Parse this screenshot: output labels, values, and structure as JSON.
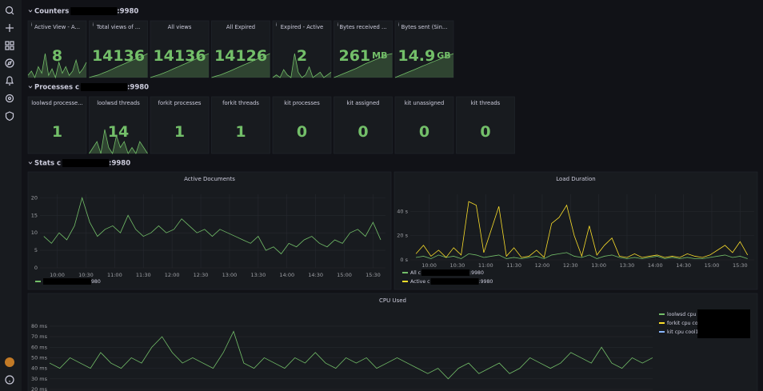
{
  "sections": [
    {
      "title": "Counters",
      "suffix": ":9980"
    },
    {
      "title": "Processes c",
      "suffix": ":9980"
    },
    {
      "title": "Stats c",
      "suffix": ":9980"
    }
  ],
  "stats": [
    {
      "title": "Active View - A...",
      "value": 8,
      "spark": [
        2,
        4,
        1,
        6,
        3,
        12,
        2,
        5,
        1,
        8,
        3,
        6,
        2,
        4,
        9,
        3,
        5,
        8
      ]
    },
    {
      "title": "Total views of ...",
      "value": 14136,
      "spark": [
        0,
        800,
        1500,
        2600,
        3600,
        4800,
        6000,
        7200,
        8300,
        9500,
        10600,
        11700,
        12800,
        14136
      ]
    },
    {
      "title": "All views",
      "value": 14136,
      "spark": [
        0,
        900,
        1700,
        2700,
        3800,
        5000,
        6100,
        7300,
        8400,
        9600,
        10800,
        11900,
        13000,
        14136
      ]
    },
    {
      "title": "All Expired",
      "value": 14126,
      "spark": [
        0,
        850,
        1600,
        2650,
        3700,
        4900,
        6050,
        7250,
        8350,
        9550,
        10700,
        11800,
        12900,
        14126
      ]
    },
    {
      "title": "Expired - Active",
      "value": 2,
      "spark": [
        0,
        1,
        0,
        3,
        1,
        0,
        9,
        2,
        0,
        1,
        4,
        0,
        1,
        2,
        0,
        1,
        2
      ]
    },
    {
      "title": "Bytes received ...",
      "value": 261,
      "unit": "MB",
      "spark": [
        0,
        20,
        40,
        60,
        80,
        100,
        125,
        150,
        170,
        190,
        210,
        230,
        250,
        261
      ]
    },
    {
      "title": "Bytes sent (Sin...",
      "value": 14.9,
      "unit": "GB",
      "spark": [
        0,
        1.2,
        2.3,
        3.5,
        4.6,
        5.8,
        7,
        8.1,
        9.3,
        10.4,
        11.5,
        12.7,
        13.8,
        14.9
      ]
    }
  ],
  "processes": [
    {
      "title": "loolwsd processe...",
      "value": 1
    },
    {
      "title": "loolwsd threads",
      "value": 14,
      "spark": [
        14,
        15,
        16,
        14,
        18,
        15,
        14,
        17,
        15,
        16,
        14,
        15,
        14,
        16,
        15,
        14
      ]
    },
    {
      "title": "forkit processes",
      "value": 1
    },
    {
      "title": "forkit threads",
      "value": 1
    },
    {
      "title": "kit processes",
      "value": 0
    },
    {
      "title": "kit assigned",
      "value": 0
    },
    {
      "title": "kit unassigned",
      "value": 0
    },
    {
      "title": "kit threads",
      "value": 0
    }
  ],
  "chart_data": [
    {
      "type": "line",
      "title": "Active Documents",
      "legend_suffix": "980",
      "x": [
        586,
        594,
        602,
        610,
        618,
        626,
        634,
        642,
        650,
        658,
        666,
        674,
        682,
        690,
        698,
        706,
        714,
        722,
        730,
        738,
        746,
        754,
        762,
        770,
        778,
        786,
        794,
        802,
        810,
        818,
        826,
        834,
        842,
        850,
        858,
        866,
        874,
        882,
        890,
        898,
        906,
        914,
        922,
        930,
        938
      ],
      "xlim": [
        582,
        943
      ],
      "xticks": [
        {
          "value": 600,
          "label": "10:00"
        },
        {
          "value": 630,
          "label": "10:30"
        },
        {
          "value": 660,
          "label": "11:00"
        },
        {
          "value": 690,
          "label": "11:30"
        },
        {
          "value": 720,
          "label": "12:00"
        },
        {
          "value": 750,
          "label": "12:30"
        },
        {
          "value": 780,
          "label": "13:00"
        },
        {
          "value": 810,
          "label": "13:30"
        },
        {
          "value": 840,
          "label": "14:00"
        },
        {
          "value": 870,
          "label": "14:30"
        },
        {
          "value": 900,
          "label": "15:00"
        },
        {
          "value": 930,
          "label": "15:30"
        }
      ],
      "ylim": [
        0,
        21
      ],
      "yticks": [
        0,
        5,
        10,
        15,
        20
      ],
      "grid": true,
      "series": [
        {
          "color": "#73bf69",
          "values": [
            9,
            7,
            10,
            8,
            12,
            20,
            13,
            9,
            11,
            12,
            10,
            15,
            11,
            9,
            10,
            12,
            10,
            11,
            14,
            12,
            10,
            11,
            9,
            11,
            10,
            9,
            8,
            7,
            9,
            5,
            6,
            4,
            7,
            6,
            8,
            9,
            7,
            6,
            8,
            7,
            10,
            11,
            9,
            13,
            8
          ]
        }
      ]
    },
    {
      "type": "line",
      "title": "Load Duration",
      "legend_suffix": ":9980",
      "x": [
        586,
        594,
        602,
        610,
        618,
        626,
        634,
        642,
        650,
        658,
        666,
        674,
        682,
        690,
        698,
        706,
        714,
        722,
        730,
        738,
        746,
        754,
        762,
        770,
        778,
        786,
        794,
        802,
        810,
        818,
        826,
        834,
        842,
        850,
        858,
        866,
        874,
        882,
        890,
        898,
        906,
        914,
        922,
        930,
        938
      ],
      "xlim": [
        580,
        945
      ],
      "xticks": [
        {
          "value": 600,
          "label": "10:00"
        },
        {
          "value": 630,
          "label": "10:30"
        },
        {
          "value": 660,
          "label": "11:00"
        },
        {
          "value": 690,
          "label": "11:30"
        },
        {
          "value": 720,
          "label": "12:00"
        },
        {
          "value": 750,
          "label": "12:30"
        },
        {
          "value": 780,
          "label": "13:00"
        },
        {
          "value": 810,
          "label": "13:30"
        },
        {
          "value": 840,
          "label": "14:00"
        },
        {
          "value": 870,
          "label": "14:30"
        },
        {
          "value": 900,
          "label": "15:00"
        },
        {
          "value": 930,
          "label": "15:30"
        }
      ],
      "ylim": [
        0,
        54
      ],
      "yticks": [
        {
          "value": 0,
          "label": "0 s"
        },
        {
          "value": 20,
          "label": "20 s"
        },
        {
          "value": 40,
          "label": "40 s"
        }
      ],
      "grid": true,
      "series": [
        {
          "name": "All c",
          "color": "#73bf69",
          "values": [
            2,
            3,
            1,
            4,
            2,
            3,
            1,
            5,
            4,
            2,
            3,
            4,
            1,
            2,
            1,
            2,
            3,
            1,
            4,
            5,
            6,
            3,
            2,
            4,
            1,
            3,
            4,
            2,
            1,
            2,
            1,
            2,
            3,
            1,
            2,
            1,
            2,
            1,
            1,
            2,
            3,
            4,
            2,
            3,
            1
          ]
        },
        {
          "name": "Active c",
          "color": "#fade2a",
          "values": [
            5,
            12,
            3,
            8,
            2,
            10,
            4,
            48,
            45,
            6,
            25,
            44,
            3,
            10,
            2,
            3,
            8,
            2,
            30,
            35,
            45,
            20,
            3,
            28,
            4,
            12,
            18,
            3,
            2,
            5,
            2,
            3,
            4,
            2,
            3,
            2,
            5,
            3,
            2,
            4,
            8,
            12,
            6,
            15,
            4
          ]
        }
      ]
    },
    {
      "type": "line",
      "title": "CPU Used",
      "ylim": [
        20,
        86
      ],
      "yticks": [
        {
          "value": 20,
          "label": "20 ms"
        },
        {
          "value": 30,
          "label": "30 ms"
        },
        {
          "value": 40,
          "label": "40 ms"
        },
        {
          "value": 50,
          "label": "50 ms"
        },
        {
          "value": 60,
          "label": "60 ms"
        },
        {
          "value": 70,
          "label": "70 ms"
        },
        {
          "value": 80,
          "label": "80 ms"
        }
      ],
      "grid": true,
      "series": [
        {
          "name": "loolwsd cpu c",
          "color": "#73bf69",
          "values": [
            45,
            40,
            50,
            45,
            40,
            55,
            45,
            40,
            50,
            45,
            60,
            70,
            55,
            45,
            50,
            45,
            40,
            55,
            75,
            45,
            40,
            50,
            45,
            40,
            50,
            45,
            55,
            45,
            40,
            50,
            45,
            50,
            40,
            45,
            50,
            45,
            40,
            35,
            40,
            30,
            40,
            45,
            35,
            40,
            45,
            35,
            40,
            50,
            45,
            40,
            45,
            55,
            50,
            45,
            60,
            45,
            40,
            50,
            45,
            50
          ]
        },
        {
          "name": "forkit cpu coo",
          "color": "#fade2a"
        },
        {
          "name": "kit cpu cool1.",
          "color": "#8ab8ff"
        }
      ]
    }
  ]
}
